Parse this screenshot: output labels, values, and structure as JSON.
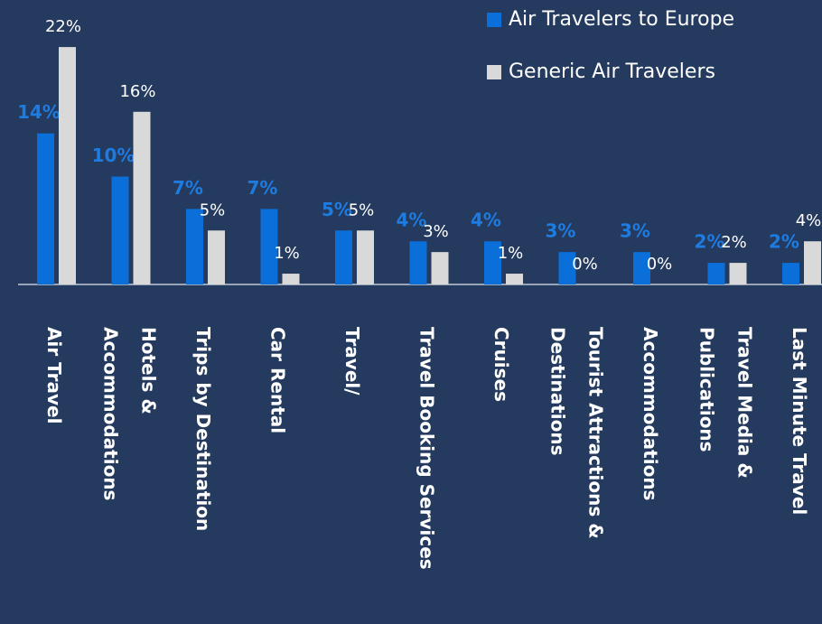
{
  "chart_data": {
    "type": "bar",
    "categories": [
      [
        "Air Travel"
      ],
      [
        "Hotels &",
        "Accommodations"
      ],
      [
        "Trips by Destination"
      ],
      [
        "Car Rental"
      ],
      [
        "Travel/"
      ],
      [
        "Travel Booking Services"
      ],
      [
        "Cruises"
      ],
      [
        "Tourist Attractions &",
        "Destinations"
      ],
      [
        "Accommodations"
      ],
      [
        "Travel Media &",
        "Publications"
      ],
      [
        "Last Minute Travel"
      ]
    ],
    "series": [
      {
        "name": "Air Travelers to Europe",
        "color": "#0a6fd8",
        "label_color": "#1e7be0",
        "values": [
          14,
          10,
          7,
          7,
          5,
          4,
          4,
          3,
          3,
          2,
          2
        ],
        "value_labels": [
          "14%",
          "10%",
          "7%",
          "7%",
          "5%",
          "4%",
          "4%",
          "3%",
          "3%",
          "2%",
          "2%"
        ]
      },
      {
        "name": "Generic Air Travelers",
        "color": "#d9d9d9",
        "label_color": "#ffffff",
        "values": [
          22,
          16,
          5,
          1,
          5,
          3,
          1,
          0,
          0,
          2,
          4
        ],
        "value_labels": [
          "22%",
          "16%",
          "5%",
          "1%",
          "5%",
          "3%",
          "1%",
          "0%",
          "0%",
          "2%",
          "4%"
        ]
      }
    ]
  }
}
